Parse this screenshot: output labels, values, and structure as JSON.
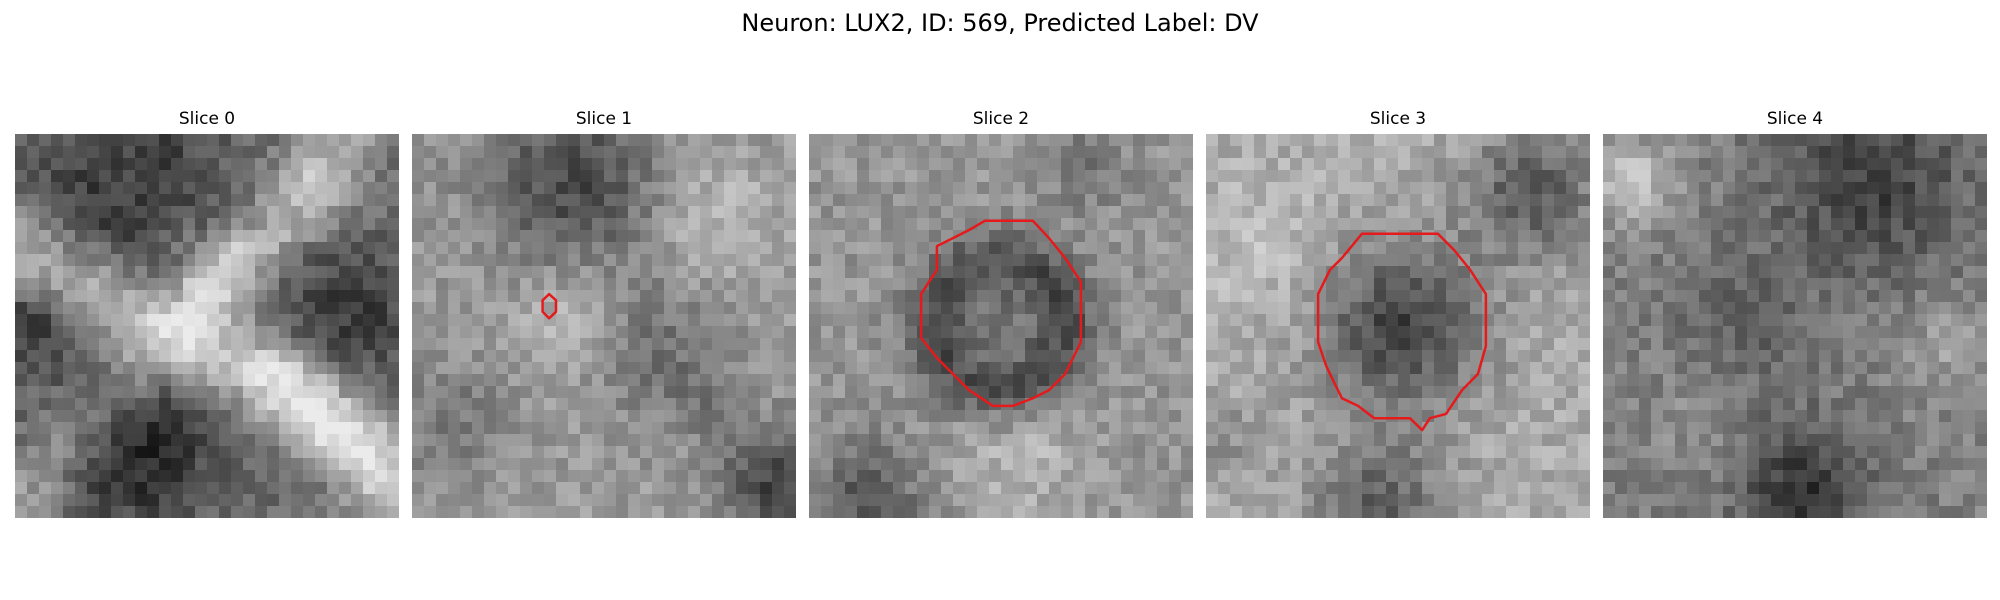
{
  "figure": {
    "title": "Neuron: LUX2, ID: 569, Predicted Label: DV"
  },
  "colors": {
    "contour": "#e41a1c",
    "background": "#ffffff"
  },
  "colormap": "gray",
  "grid_size": 32,
  "slices": [
    {
      "title": "Slice 0",
      "has_contour": false
    },
    {
      "title": "Slice 1",
      "has_contour": true,
      "contour_size": "small"
    },
    {
      "title": "Slice 2",
      "has_contour": true,
      "contour_size": "large"
    },
    {
      "title": "Slice 3",
      "has_contour": true,
      "contour_size": "large"
    },
    {
      "title": "Slice 4",
      "has_contour": false
    }
  ]
}
